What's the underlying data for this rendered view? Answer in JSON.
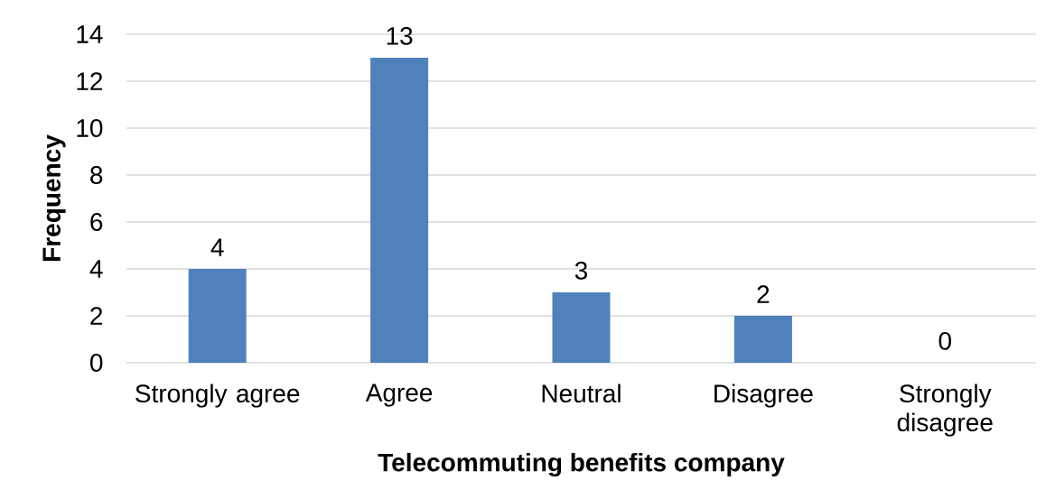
{
  "chart_data": {
    "type": "bar",
    "xlabel": "Telecommuting benefits company",
    "ylabel": "Frequency",
    "categories": [
      "Strongly agree",
      "Agree",
      "Neutral",
      "Disagree",
      "Strongly disagree"
    ],
    "values": [
      4,
      13,
      3,
      2,
      0
    ],
    "color": "#4f81bd",
    "ylim": [
      0,
      14
    ],
    "yticks": [
      0,
      2,
      4,
      6,
      8,
      10,
      12,
      14
    ],
    "grid": "y",
    "data_labels": true
  }
}
